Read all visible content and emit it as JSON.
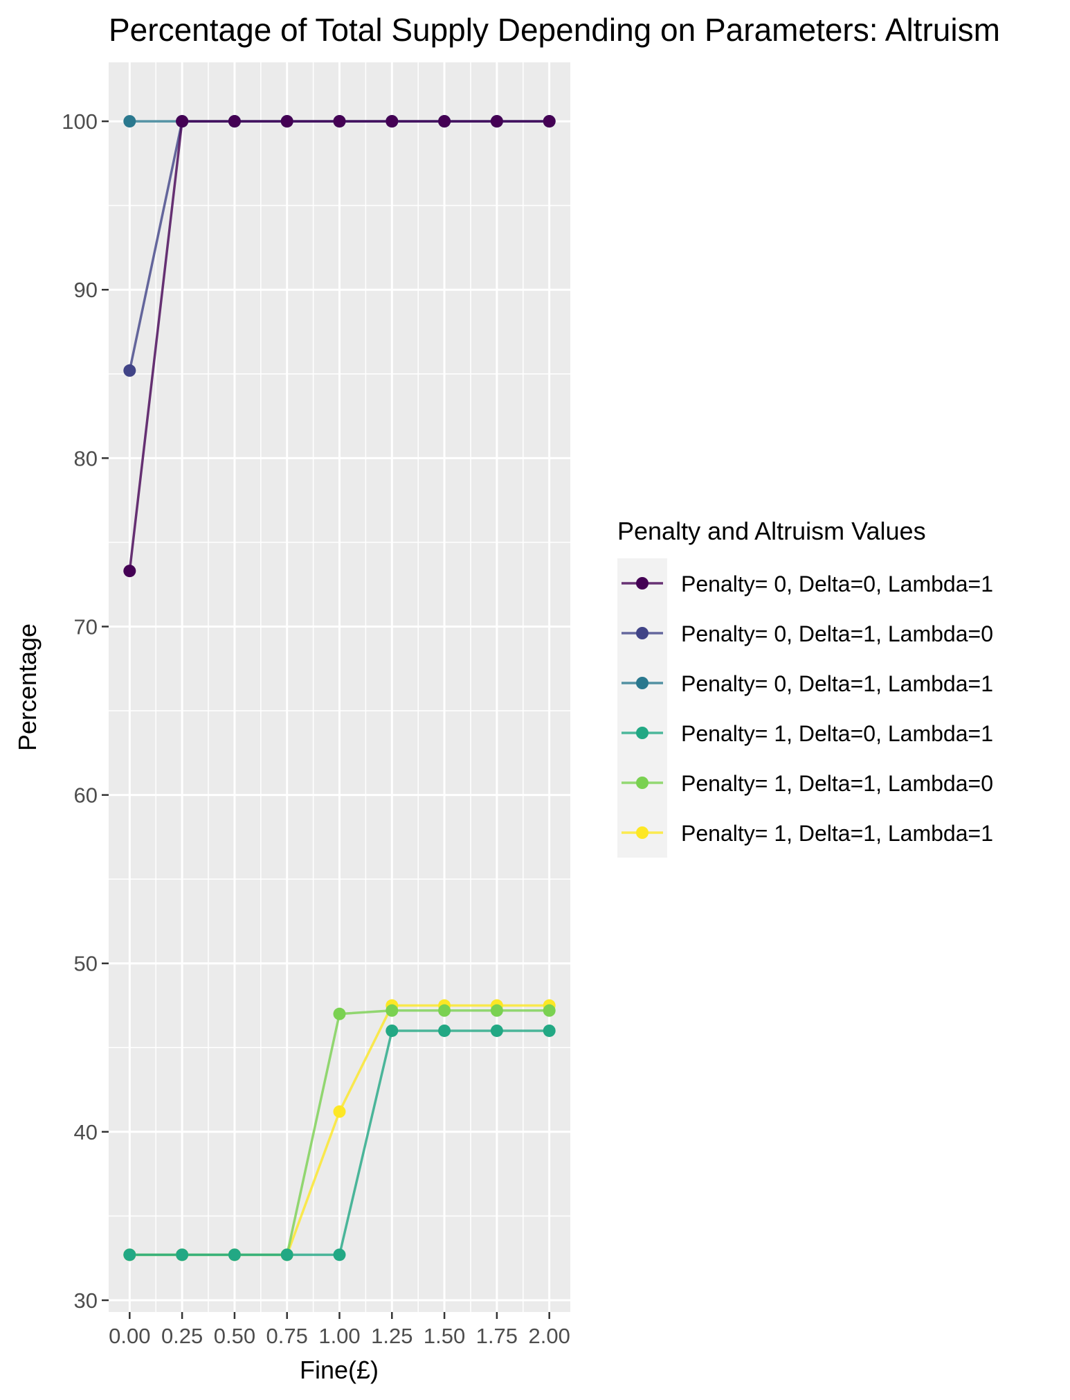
{
  "chart_data": {
    "type": "line",
    "title": "Percentage of Total Supply Depending on Parameters: Altruism",
    "xlabel": "Fine(£)",
    "ylabel": "Percentage",
    "x": [
      0.0,
      0.25,
      0.5,
      0.75,
      1.0,
      1.25,
      1.5,
      1.75,
      2.0
    ],
    "x_tick_labels": [
      "0.00",
      "0.25",
      "0.50",
      "0.75",
      "1.00",
      "1.25",
      "1.50",
      "1.75",
      "2.00"
    ],
    "y_ticks": [
      30,
      40,
      50,
      60,
      70,
      80,
      90,
      100
    ],
    "y_tick_labels": [
      "30",
      "40",
      "50",
      "60",
      "70",
      "80",
      "90",
      "100"
    ],
    "xlim": [
      -0.1,
      2.1
    ],
    "ylim": [
      29.3,
      103.5
    ],
    "grid": true,
    "legend_title": "Penalty and Altruism Values",
    "legend_position": "right",
    "series": [
      {
        "name": "Penalty= 0, Delta=0, Lambda=1",
        "color": "#440154",
        "values": [
          73.3,
          100,
          100,
          100,
          100,
          100,
          100,
          100,
          100
        ]
      },
      {
        "name": "Penalty= 0, Delta=1, Lambda=0",
        "color": "#414487",
        "values": [
          85.2,
          100,
          100,
          100,
          100,
          100,
          100,
          100,
          100
        ]
      },
      {
        "name": "Penalty= 0, Delta=1, Lambda=1",
        "color": "#2A788E",
        "values": [
          100,
          100,
          100,
          100,
          100,
          100,
          100,
          100,
          100
        ]
      },
      {
        "name": "Penalty= 1, Delta=0, Lambda=1",
        "color": "#22A884",
        "values": [
          32.7,
          32.7,
          32.7,
          32.7,
          32.7,
          46.0,
          46.0,
          46.0,
          46.0
        ]
      },
      {
        "name": "Penalty= 1, Delta=1, Lambda=0",
        "color": "#7AD151",
        "values": [
          32.7,
          32.7,
          32.7,
          32.7,
          47.0,
          47.2,
          47.2,
          47.2,
          47.2
        ]
      },
      {
        "name": "Penalty= 1, Delta=1, Lambda=1",
        "color": "#FDE725",
        "values": [
          32.7,
          32.7,
          32.7,
          32.7,
          41.2,
          47.5,
          47.5,
          47.5,
          47.5
        ]
      }
    ],
    "draw_order": [
      5,
      4,
      3,
      2,
      1,
      0
    ]
  }
}
